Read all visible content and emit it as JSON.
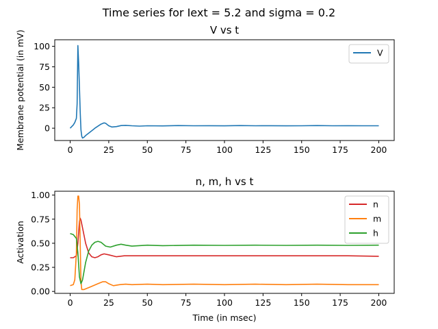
{
  "suptitle": "Time series for Iext = 5.2 and sigma = 0.2",
  "chart_data": [
    {
      "type": "line",
      "title": "V vs t",
      "xlabel": "",
      "ylabel": "Membrane potential (in mV)",
      "xlim": [
        -10,
        210
      ],
      "ylim": [
        -15,
        108
      ],
      "xticks": [
        0,
        25,
        50,
        75,
        100,
        125,
        150,
        175,
        200
      ],
      "yticks": [
        0,
        25,
        50,
        75,
        100
      ],
      "grid": false,
      "legend_position": "top-right",
      "series": [
        {
          "name": "V",
          "color": "#1f77b4",
          "points": [
            [
              0,
              0
            ],
            [
              1,
              2
            ],
            [
              2,
              4
            ],
            [
              3,
              7
            ],
            [
              4,
              12
            ],
            [
              4.5,
              30
            ],
            [
              5,
              101
            ],
            [
              5.5,
              80
            ],
            [
              6,
              50
            ],
            [
              6.5,
              20
            ],
            [
              7,
              -2
            ],
            [
              7.5,
              -10
            ],
            [
              8,
              -12
            ],
            [
              9,
              -11
            ],
            [
              10,
              -9
            ],
            [
              12,
              -6
            ],
            [
              14,
              -3
            ],
            [
              16,
              0
            ],
            [
              18,
              2.5
            ],
            [
              20,
              5
            ],
            [
              22,
              6.5
            ],
            [
              23,
              6
            ],
            [
              24,
              4.5
            ],
            [
              25,
              3
            ],
            [
              27,
              1.5
            ],
            [
              30,
              2
            ],
            [
              33,
              3.2
            ],
            [
              36,
              3.5
            ],
            [
              40,
              3
            ],
            [
              45,
              2.6
            ],
            [
              50,
              3
            ],
            [
              60,
              2.8
            ],
            [
              70,
              3.2
            ],
            [
              80,
              3
            ],
            [
              90,
              3.1
            ],
            [
              100,
              2.9
            ],
            [
              110,
              3.2
            ],
            [
              120,
              3
            ],
            [
              130,
              3.1
            ],
            [
              140,
              2.9
            ],
            [
              150,
              3
            ],
            [
              160,
              3.2
            ],
            [
              170,
              3
            ],
            [
              180,
              3.1
            ],
            [
              190,
              3
            ],
            [
              200,
              3
            ]
          ]
        }
      ]
    },
    {
      "type": "line",
      "title": "n, m, h vs t",
      "xlabel": "Time (in msec)",
      "ylabel": "Activation",
      "xlim": [
        -10,
        210
      ],
      "ylim": [
        -0.02,
        1.04
      ],
      "xticks": [
        0,
        25,
        50,
        75,
        100,
        125,
        150,
        175,
        200
      ],
      "yticks": [
        0.0,
        0.25,
        0.5,
        0.75,
        1.0
      ],
      "ytick_labels": [
        "0.00",
        "0.25",
        "0.50",
        "0.75",
        "1.00"
      ],
      "grid": false,
      "legend_position": "top-right",
      "series": [
        {
          "name": "n",
          "color": "#d62728",
          "points": [
            [
              0,
              0.35
            ],
            [
              2,
              0.35
            ],
            [
              4,
              0.37
            ],
            [
              5,
              0.5
            ],
            [
              6,
              0.73
            ],
            [
              6.5,
              0.76
            ],
            [
              7,
              0.74
            ],
            [
              8,
              0.66
            ],
            [
              10,
              0.5
            ],
            [
              12,
              0.4
            ],
            [
              14,
              0.36
            ],
            [
              16,
              0.35
            ],
            [
              18,
              0.36
            ],
            [
              20,
              0.38
            ],
            [
              22,
              0.39
            ],
            [
              25,
              0.38
            ],
            [
              30,
              0.36
            ],
            [
              35,
              0.37
            ],
            [
              40,
              0.37
            ],
            [
              50,
              0.37
            ],
            [
              60,
              0.37
            ],
            [
              80,
              0.37
            ],
            [
              100,
              0.37
            ],
            [
              120,
              0.37
            ],
            [
              140,
              0.37
            ],
            [
              160,
              0.37
            ],
            [
              180,
              0.37
            ],
            [
              200,
              0.365
            ]
          ]
        },
        {
          "name": "m",
          "color": "#ff7f0e",
          "points": [
            [
              0,
              0.06
            ],
            [
              2,
              0.07
            ],
            [
              3,
              0.12
            ],
            [
              4,
              0.4
            ],
            [
              4.5,
              0.85
            ],
            [
              5,
              0.99
            ],
            [
              5.5,
              0.99
            ],
            [
              6,
              0.9
            ],
            [
              6.5,
              0.5
            ],
            [
              7,
              0.1
            ],
            [
              7.5,
              0.02
            ],
            [
              9,
              0.02
            ],
            [
              12,
              0.04
            ],
            [
              15,
              0.06
            ],
            [
              18,
              0.08
            ],
            [
              21,
              0.1
            ],
            [
              23,
              0.1
            ],
            [
              25,
              0.08
            ],
            [
              28,
              0.06
            ],
            [
              32,
              0.07
            ],
            [
              36,
              0.075
            ],
            [
              40,
              0.07
            ],
            [
              50,
              0.075
            ],
            [
              60,
              0.07
            ],
            [
              80,
              0.075
            ],
            [
              100,
              0.07
            ],
            [
              120,
              0.075
            ],
            [
              140,
              0.07
            ],
            [
              160,
              0.075
            ],
            [
              180,
              0.07
            ],
            [
              200,
              0.07
            ]
          ]
        },
        {
          "name": "h",
          "color": "#2ca02c",
          "points": [
            [
              0,
              0.6
            ],
            [
              2,
              0.59
            ],
            [
              4,
              0.55
            ],
            [
              5,
              0.4
            ],
            [
              6,
              0.15
            ],
            [
              7,
              0.08
            ],
            [
              8,
              0.12
            ],
            [
              10,
              0.3
            ],
            [
              12,
              0.42
            ],
            [
              14,
              0.48
            ],
            [
              16,
              0.51
            ],
            [
              18,
              0.52
            ],
            [
              20,
              0.51
            ],
            [
              23,
              0.47
            ],
            [
              26,
              0.46
            ],
            [
              30,
              0.48
            ],
            [
              33,
              0.49
            ],
            [
              36,
              0.48
            ],
            [
              40,
              0.47
            ],
            [
              50,
              0.48
            ],
            [
              60,
              0.475
            ],
            [
              80,
              0.48
            ],
            [
              100,
              0.478
            ],
            [
              120,
              0.48
            ],
            [
              140,
              0.478
            ],
            [
              160,
              0.48
            ],
            [
              180,
              0.478
            ],
            [
              200,
              0.48
            ]
          ]
        }
      ]
    }
  ]
}
